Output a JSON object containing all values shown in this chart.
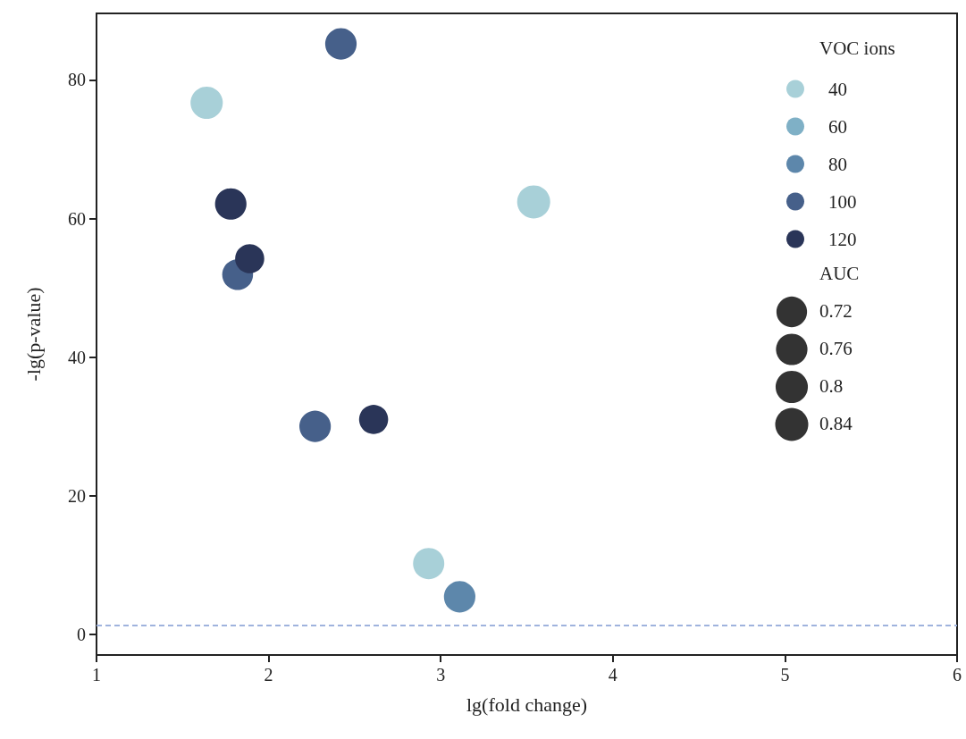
{
  "chart_data": {
    "type": "bubble",
    "xlabel": "lg(fold change)",
    "ylabel": "-lg(p-value)",
    "legend_title": "VOC ions",
    "annotations": [
      "AUC"
    ],
    "series": [
      {
        "name": "40",
        "color": "#a8d0d8",
        "x": [
          1.64,
          3.54,
          2.93
        ],
        "values": [
          76.7,
          62.4,
          10.2
        ],
        "sizes": [
          0.8,
          0.84,
          0.75
        ]
      },
      {
        "name": "60",
        "color": "#7fb0c6"
      },
      {
        "name": "80",
        "color": "#5d87ab",
        "x": [
          3.11
        ],
        "values": [
          5.4
        ],
        "sizes": [
          0.76
        ]
      },
      {
        "name": "100",
        "color": "#46608a",
        "x": [
          2.42,
          1.82,
          2.27
        ],
        "values": [
          85.2,
          51.9,
          30.0
        ],
        "sizes": [
          0.76,
          0.73,
          0.76
        ]
      },
      {
        "name": "120",
        "color": "#2a3558",
        "x": [
          1.78,
          1.89,
          2.61
        ],
        "values": [
          62.1,
          54.2,
          31.0
        ],
        "sizes": [
          0.76,
          0.65,
          0.65
        ]
      }
    ],
    "size_legend": [
      0.72,
      0.76,
      0.8,
      0.84
    ],
    "xlim": [
      1,
      6
    ],
    "xticks": [
      1,
      2,
      3,
      4,
      5,
      6
    ],
    "ylim": [
      -3,
      89.6
    ],
    "yticks": [
      0,
      20,
      40,
      60,
      80
    ],
    "ref_lines": [
      {
        "axis": "y",
        "value": 1.3,
        "color": "#9fb3dd",
        "line_style": "dashed"
      }
    ],
    "grid": false,
    "legend": "top right"
  }
}
